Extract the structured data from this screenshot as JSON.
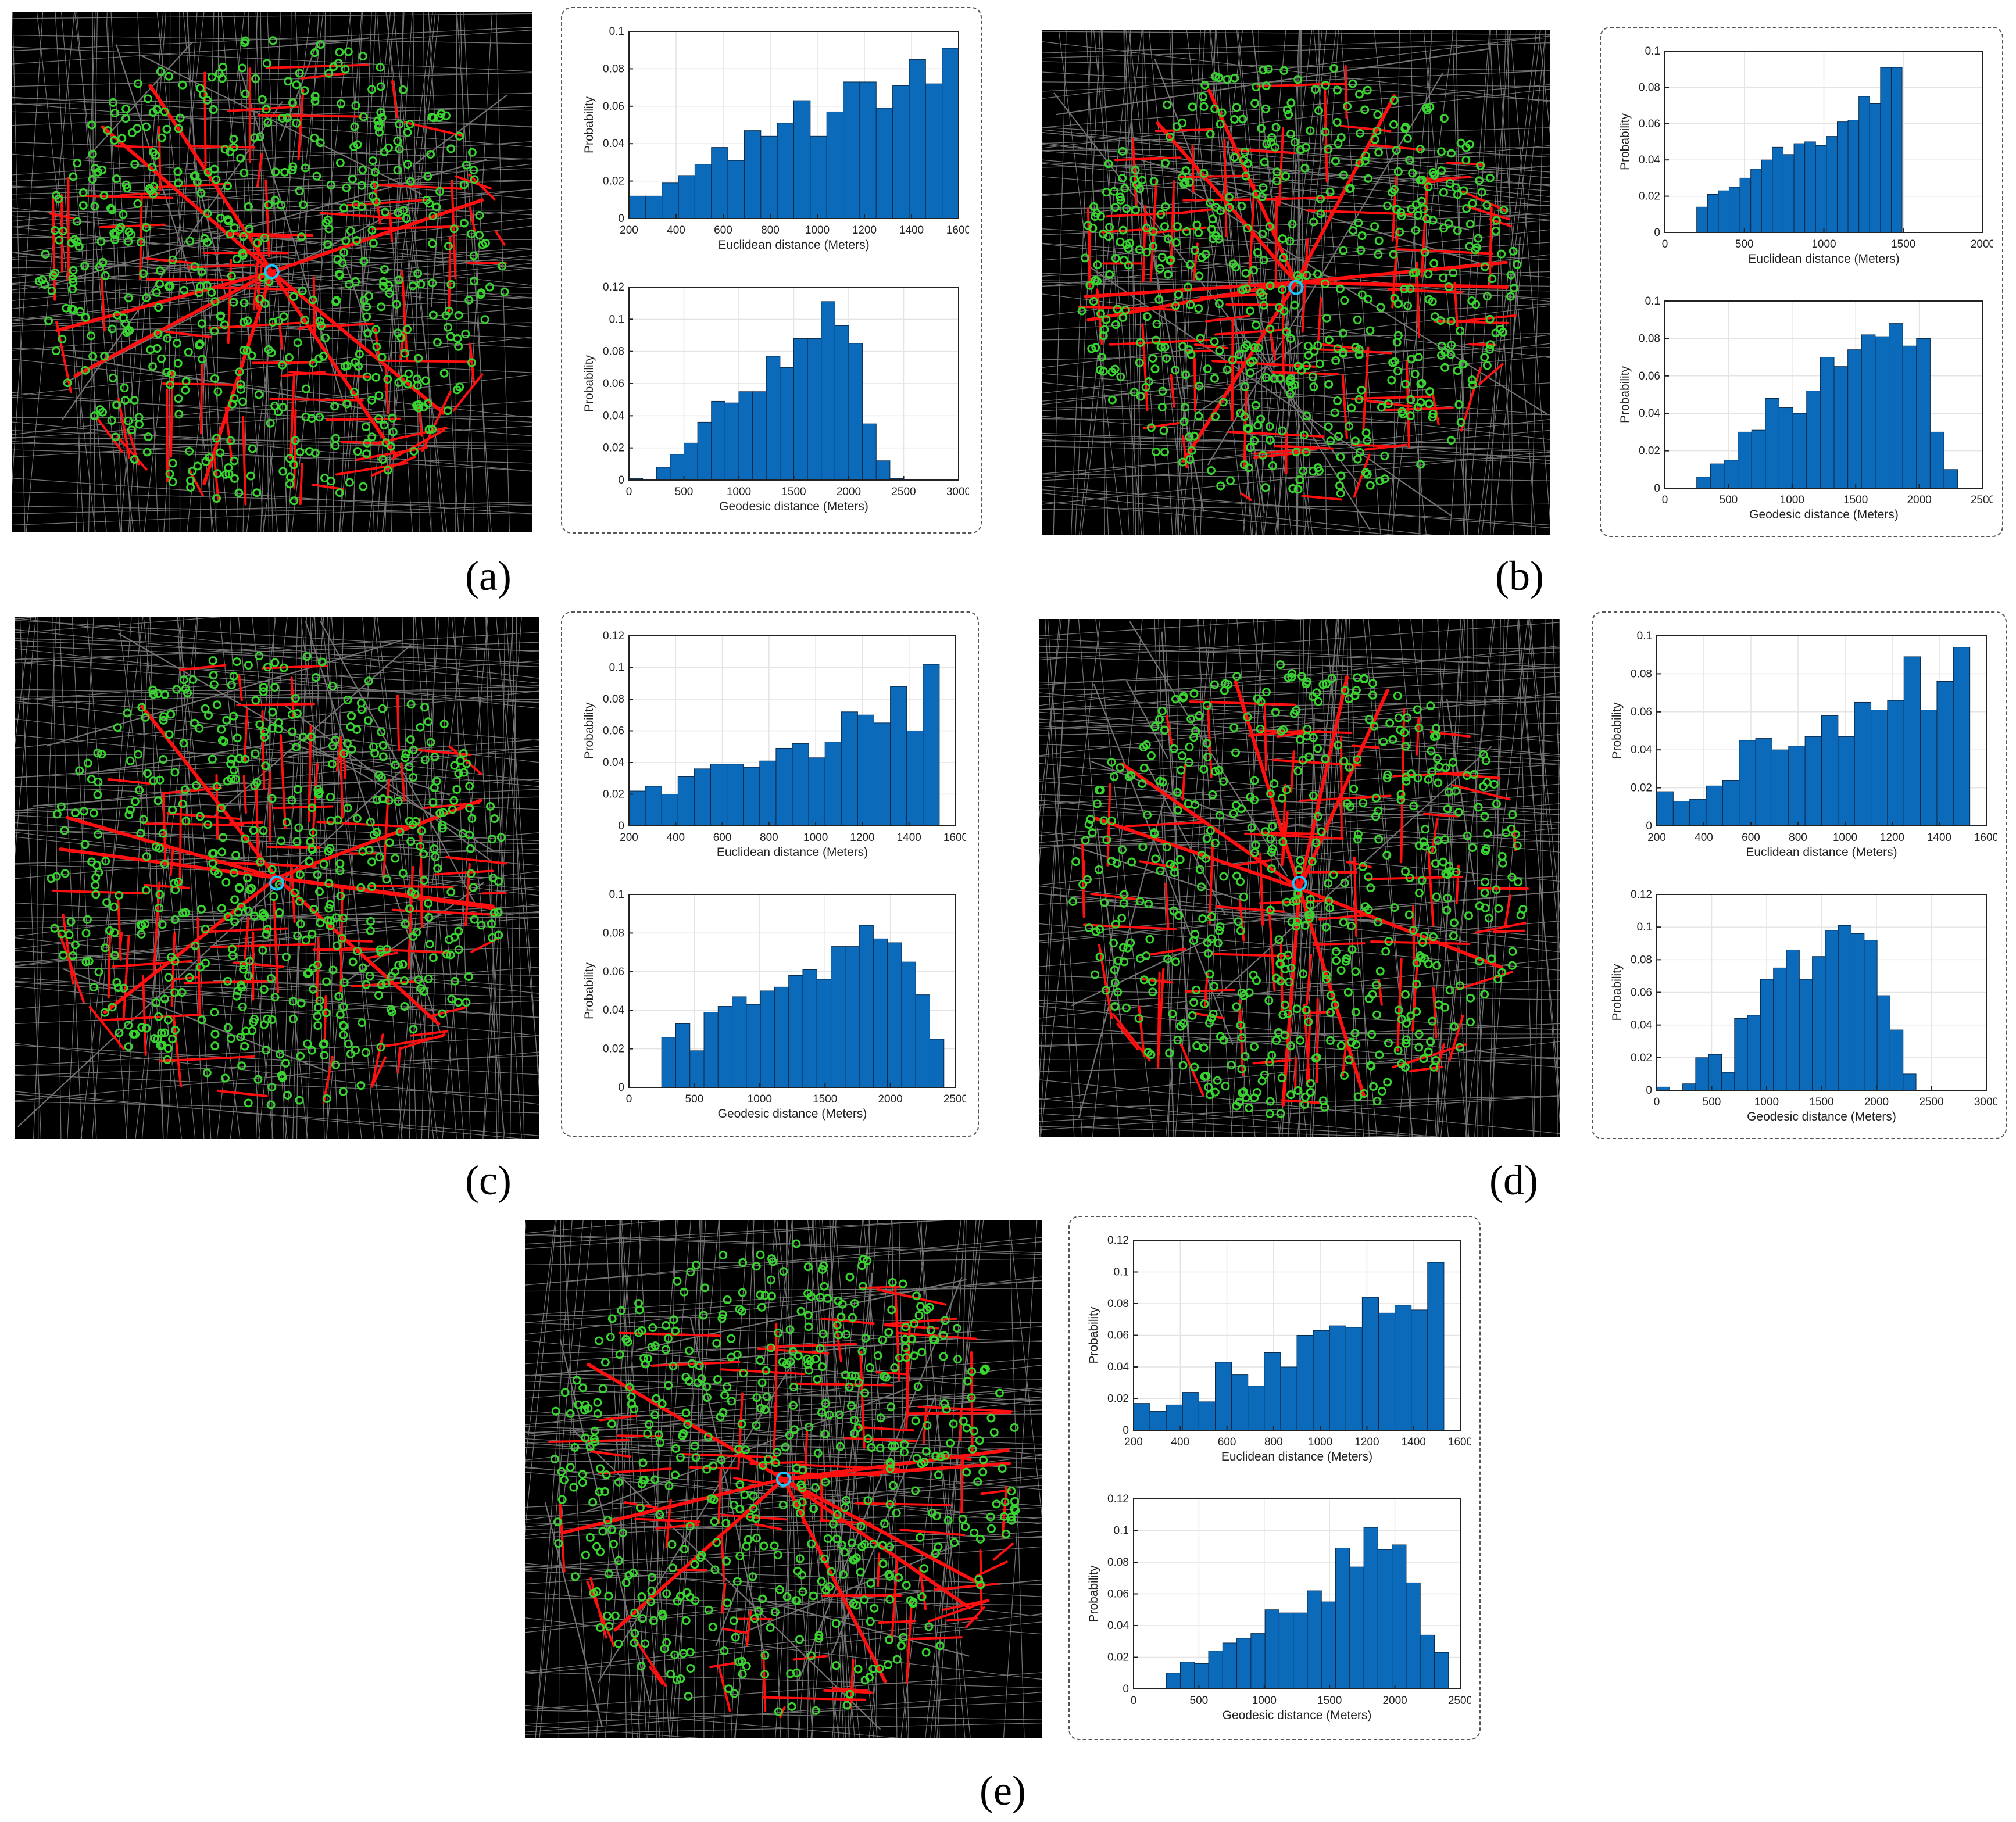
{
  "colors": {
    "bar_fill": "#0b6ab9",
    "bar_stroke": "#0a2a4a",
    "road_red": "#ff1010",
    "node_green": "#38d430",
    "center_cyan": "#19c6ff",
    "map_bg": "#000000",
    "street_gray": "#9a9a9a"
  },
  "panels": [
    {
      "id": "a",
      "caption": "(a)",
      "chart_data": [
        {
          "type": "bar",
          "xlabel": "Euclidean distance (Meters)",
          "ylabel": "Probability",
          "xlim": [
            200,
            1600
          ],
          "ylim": [
            0,
            0.1
          ],
          "xticks": [
            200,
            400,
            600,
            800,
            1000,
            1200,
            1400,
            1600
          ],
          "yticks": [
            0,
            0.02,
            0.04,
            0.06,
            0.08,
            0.1
          ],
          "bin_start": 200,
          "bin_width": 70,
          "values": [
            0.012,
            0.012,
            0.019,
            0.023,
            0.029,
            0.038,
            0.031,
            0.047,
            0.044,
            0.051,
            0.063,
            0.044,
            0.057,
            0.073,
            0.073,
            0.059,
            0.071,
            0.085,
            0.072,
            0.091
          ]
        },
        {
          "type": "bar",
          "xlabel": "Geodesic distance (Meters)",
          "ylabel": "Probability",
          "xlim": [
            0,
            3000
          ],
          "ylim": [
            0,
            0.12
          ],
          "xticks": [
            0,
            500,
            1000,
            1500,
            2000,
            2500,
            3000
          ],
          "yticks": [
            0,
            0.02,
            0.04,
            0.06,
            0.08,
            0.1,
            0.12
          ],
          "bin_start": 0,
          "bin_width": 125,
          "values": [
            0.001,
            0,
            0.008,
            0.016,
            0.023,
            0.036,
            0.049,
            0.048,
            0.055,
            0.055,
            0.077,
            0.07,
            0.088,
            0.088,
            0.111,
            0.096,
            0.085,
            0.035,
            0.012,
            0.001,
            0,
            0,
            0,
            0
          ]
        }
      ]
    },
    {
      "id": "b",
      "caption": "(b)",
      "chart_data": [
        {
          "type": "bar",
          "xlabel": "Euclidean distance (Meters)",
          "ylabel": "Probability",
          "xlim": [
            0,
            2000
          ],
          "ylim": [
            0,
            0.1
          ],
          "xticks": [
            0,
            500,
            1000,
            1500,
            2000
          ],
          "yticks": [
            0,
            0.02,
            0.04,
            0.06,
            0.08,
            0.1
          ],
          "bin_start": 200,
          "bin_width": 68,
          "values": [
            0.014,
            0.021,
            0.023,
            0.025,
            0.03,
            0.035,
            0.04,
            0.047,
            0.043,
            0.049,
            0.05,
            0.048,
            0.053,
            0.061,
            0.062,
            0.075,
            0.071,
            0.091,
            0.091
          ]
        },
        {
          "type": "bar",
          "xlabel": "Geodesic distance (Meters)",
          "ylabel": "Probability",
          "xlim": [
            0,
            2500
          ],
          "ylim": [
            0,
            0.1
          ],
          "xticks": [
            0,
            500,
            1000,
            1500,
            2000,
            2500
          ],
          "yticks": [
            0,
            0.02,
            0.04,
            0.06,
            0.08,
            0.1
          ],
          "bin_start": 250,
          "bin_width": 108,
          "values": [
            0.006,
            0.013,
            0.015,
            0.03,
            0.031,
            0.048,
            0.043,
            0.04,
            0.052,
            0.07,
            0.065,
            0.074,
            0.082,
            0.081,
            0.088,
            0.076,
            0.08,
            0.03,
            0.01
          ]
        }
      ]
    },
    {
      "id": "c",
      "caption": "(c)",
      "chart_data": [
        {
          "type": "bar",
          "xlabel": "Euclidean distance (Meters)",
          "ylabel": "Probability",
          "xlim": [
            200,
            1600
          ],
          "ylim": [
            0,
            0.12
          ],
          "xticks": [
            200,
            400,
            600,
            800,
            1000,
            1200,
            1400,
            1600
          ],
          "yticks": [
            0,
            0.02,
            0.04,
            0.06,
            0.08,
            0.1,
            0.12
          ],
          "bin_start": 200,
          "bin_width": 70,
          "values": [
            0.022,
            0.025,
            0.02,
            0.031,
            0.036,
            0.039,
            0.039,
            0.037,
            0.041,
            0.049,
            0.052,
            0.043,
            0.053,
            0.072,
            0.07,
            0.065,
            0.088,
            0.06,
            0.102,
            0
          ]
        },
        {
          "type": "bar",
          "xlabel": "Geodesic distance (Meters)",
          "ylabel": "Probability",
          "xlim": [
            0,
            2500
          ],
          "ylim": [
            0,
            0.1
          ],
          "xticks": [
            0,
            500,
            1000,
            1500,
            2000,
            2500
          ],
          "yticks": [
            0,
            0.02,
            0.04,
            0.06,
            0.08,
            0.1
          ],
          "bin_start": 250,
          "bin_width": 108,
          "values": [
            0.026,
            0.033,
            0.019,
            0.039,
            0.042,
            0.047,
            0.043,
            0.05,
            0.052,
            0.058,
            0.061,
            0.056,
            0.073,
            0.073,
            0.084,
            0.077,
            0.075,
            0.065,
            0.048,
            0.025
          ]
        }
      ]
    },
    {
      "id": "d",
      "caption": "(d)",
      "chart_data": [
        {
          "type": "bar",
          "xlabel": "Euclidean distance (Meters)",
          "ylabel": "Probability",
          "xlim": [
            200,
            1600
          ],
          "ylim": [
            0,
            0.1
          ],
          "xticks": [
            200,
            400,
            600,
            800,
            1000,
            1200,
            1400,
            1600
          ],
          "yticks": [
            0,
            0.02,
            0.04,
            0.06,
            0.08,
            0.1
          ],
          "bin_start": 200,
          "bin_width": 70,
          "values": [
            0.018,
            0.013,
            0.014,
            0.021,
            0.024,
            0.045,
            0.046,
            0.04,
            0.042,
            0.047,
            0.058,
            0.047,
            0.065,
            0.061,
            0.066,
            0.089,
            0.061,
            0.076,
            0.094,
            0
          ]
        },
        {
          "type": "bar",
          "xlabel": "Geodesic distance (Meters)",
          "ylabel": "Probability",
          "xlim": [
            0,
            3000
          ],
          "ylim": [
            0,
            0.12
          ],
          "xticks": [
            0,
            500,
            1000,
            1500,
            2000,
            2500,
            3000
          ],
          "yticks": [
            0,
            0.02,
            0.04,
            0.06,
            0.08,
            0.1,
            0.12
          ],
          "bin_start": 0,
          "bin_width": 118,
          "values": [
            0.002,
            0,
            0.004,
            0.02,
            0.022,
            0.011,
            0.044,
            0.046,
            0.068,
            0.075,
            0.086,
            0.068,
            0.082,
            0.098,
            0.101,
            0.096,
            0.092,
            0.058,
            0.037,
            0.01,
            0,
            0,
            0,
            0
          ]
        }
      ]
    },
    {
      "id": "e",
      "caption": "(e)",
      "chart_data": [
        {
          "type": "bar",
          "xlabel": "Euclidean distance (Meters)",
          "ylabel": "Probability",
          "xlim": [
            200,
            1600
          ],
          "ylim": [
            0,
            0.12
          ],
          "xticks": [
            200,
            400,
            600,
            800,
            1000,
            1200,
            1400,
            1600
          ],
          "yticks": [
            0,
            0.02,
            0.04,
            0.06,
            0.08,
            0.1,
            0.12
          ],
          "bin_start": 200,
          "bin_width": 70,
          "values": [
            0.017,
            0.012,
            0.016,
            0.024,
            0.018,
            0.043,
            0.035,
            0.028,
            0.049,
            0.04,
            0.06,
            0.063,
            0.066,
            0.065,
            0.084,
            0.074,
            0.079,
            0.076,
            0.106,
            0
          ]
        },
        {
          "type": "bar",
          "xlabel": "Geodesic distance (Meters)",
          "ylabel": "Probability",
          "xlim": [
            0,
            2500
          ],
          "ylim": [
            0,
            0.12
          ],
          "xticks": [
            0,
            500,
            1000,
            1500,
            2000,
            2500
          ],
          "yticks": [
            0,
            0.02,
            0.04,
            0.06,
            0.08,
            0.1,
            0.12
          ],
          "bin_start": 250,
          "bin_width": 108,
          "values": [
            0.01,
            0.017,
            0.016,
            0.024,
            0.029,
            0.032,
            0.035,
            0.05,
            0.048,
            0.048,
            0.062,
            0.055,
            0.089,
            0.077,
            0.102,
            0.088,
            0.091,
            0.067,
            0.034,
            0.023
          ]
        }
      ]
    }
  ]
}
